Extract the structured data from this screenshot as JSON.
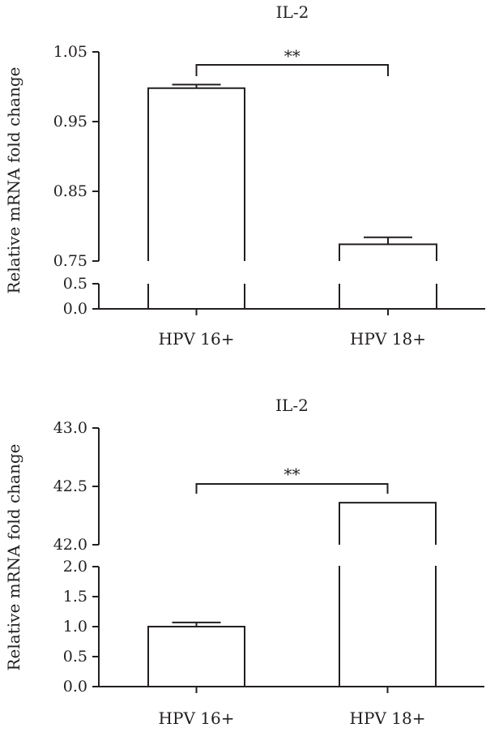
{
  "chart_data": [
    {
      "type": "bar",
      "title": "IL-2",
      "ylabel": "Relative mRNA fold change",
      "categories": [
        "HPV 16+",
        "HPV 18+"
      ],
      "values": [
        0.998,
        0.774
      ],
      "error": [
        0.005,
        0.01
      ],
      "axis_break": true,
      "segments": [
        {
          "range": [
            0.0,
            0.5
          ],
          "ticks": [
            0.0,
            0.5
          ],
          "tick_labels": [
            "0.0",
            "0.5"
          ]
        },
        {
          "range": [
            0.75,
            1.05
          ],
          "ticks": [
            0.75,
            0.85,
            0.95,
            1.05
          ],
          "tick_labels": [
            "0.75",
            "0.85",
            "0.95",
            "1.05"
          ]
        }
      ],
      "significance": "**"
    },
    {
      "type": "bar",
      "title": "IL-2",
      "ylabel": "Relative mRNA fold change",
      "categories": [
        "HPV 16+",
        "HPV 18+"
      ],
      "values": [
        1.0,
        42.36
      ],
      "error": [
        0.07,
        0.0
      ],
      "axis_break": true,
      "segments": [
        {
          "range": [
            0.0,
            2.0
          ],
          "ticks": [
            0.0,
            0.5,
            1.0,
            1.5,
            2.0
          ],
          "tick_labels": [
            "0.0",
            "0.5",
            "1.0",
            "1.5",
            "2.0"
          ]
        },
        {
          "range": [
            42.0,
            43.0
          ],
          "ticks": [
            42.0,
            42.5,
            43.0
          ],
          "tick_labels": [
            "42.0",
            "42.5",
            "43.0"
          ]
        }
      ],
      "significance": "**"
    }
  ]
}
